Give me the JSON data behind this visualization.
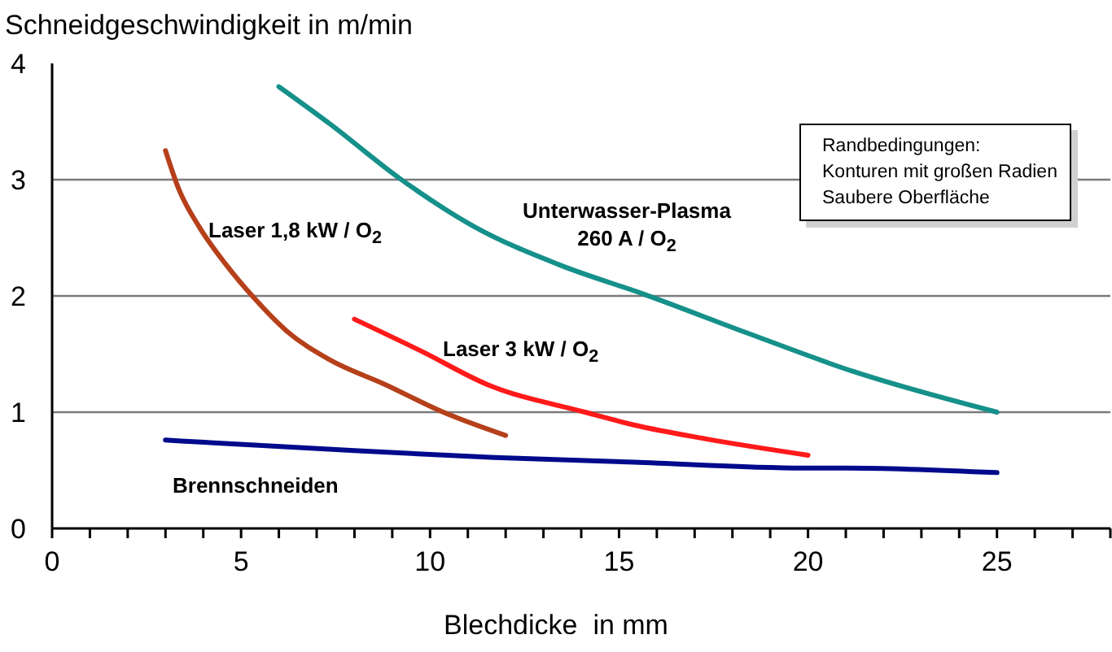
{
  "chart_data": {
    "type": "line",
    "xlabel": "Blechdicke  in mm",
    "ylabel": "Schneidgeschwindigkeit in m/min",
    "xlim": [
      0,
      28
    ],
    "ylim": [
      0,
      4
    ],
    "xticks": [
      0,
      {
        "value": 1,
        "label": null
      },
      {
        "value": 2,
        "label": null
      },
      {
        "value": 3,
        "label": null
      },
      {
        "value": 4,
        "label": null
      },
      5,
      {
        "value": 6,
        "label": null
      },
      {
        "value": 7,
        "label": null
      },
      {
        "value": 8,
        "label": null
      },
      {
        "value": 9,
        "label": null
      },
      10,
      {
        "value": 11,
        "label": null
      },
      {
        "value": 12,
        "label": null
      },
      {
        "value": 13,
        "label": null
      },
      {
        "value": 14,
        "label": null
      },
      15,
      {
        "value": 16,
        "label": null
      },
      {
        "value": 17,
        "label": null
      },
      {
        "value": 18,
        "label": null
      },
      {
        "value": 19,
        "label": null
      },
      20,
      {
        "value": 21,
        "label": null
      },
      {
        "value": 22,
        "label": null
      },
      {
        "value": 23,
        "label": null
      },
      {
        "value": 24,
        "label": null
      },
      25,
      {
        "value": 26,
        "label": null
      },
      {
        "value": 27,
        "label": null
      },
      {
        "value": 28,
        "label": null
      }
    ],
    "yticks": [
      0,
      1,
      2,
      3,
      4
    ],
    "grid": "y",
    "marker": "none",
    "line_style": "solid",
    "series": [
      {
        "name": "Laser 1,8 kW / O$_{2}$",
        "color": "#b5401a",
        "x": [
          3,
          3.35,
          3.9,
          4.6,
          5.35,
          6.2,
          7.35,
          8.8,
          10.35,
          12
        ],
        "values": [
          3.25,
          2.92,
          2.59,
          2.27,
          1.98,
          1.7,
          1.45,
          1.24,
          1.0,
          0.8
        ]
      },
      {
        "name": "Laser 3 kW / O$_{2}$",
        "color": "#ff1a1a",
        "x": [
          8,
          9.8,
          11.5,
          14.1,
          15.4,
          17.3,
          20
        ],
        "values": [
          1.8,
          1.52,
          1.24,
          1.0,
          0.89,
          0.77,
          0.63
        ]
      },
      {
        "name": "Unterwasser-Plasma\n260 A / O$_{2}$",
        "color": "#16908a",
        "x": [
          6,
          7.35,
          9.2,
          11.2,
          13.4,
          15.7,
          18.4,
          21.2,
          25
        ],
        "values": [
          3.8,
          3.48,
          3.01,
          2.59,
          2.27,
          2.01,
          1.68,
          1.35,
          1.0
        ]
      },
      {
        "name": "Brennschneiden",
        "color": "#000a8c",
        "x": [
          3,
          8,
          11.7,
          15.4,
          19.9,
          21,
          25
        ],
        "values": [
          0.76,
          0.67,
          0.61,
          0.57,
          0.52,
          0.52,
          0.48
        ]
      }
    ],
    "annotations": [
      "Randbedingungen:\nKonturen mit großen Radien\nSaubere Oberfläche"
    ]
  }
}
